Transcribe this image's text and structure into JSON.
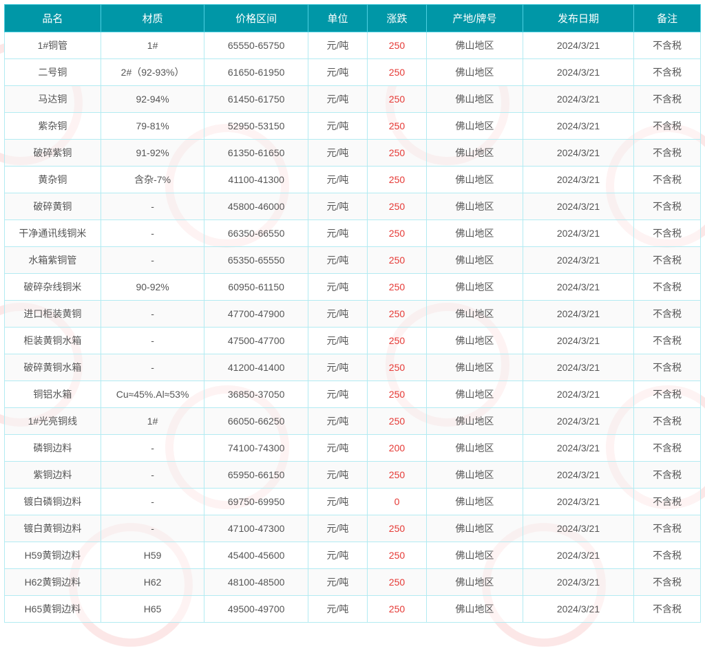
{
  "table": {
    "header_bg": "#0097a7",
    "header_fg": "#ffffff",
    "border_color": "#b2ebf2",
    "change_color": "#e53935",
    "text_color": "#555555",
    "columns": [
      "品名",
      "材质",
      "价格区间",
      "单位",
      "涨跌",
      "产地/牌号",
      "发布日期",
      "备注"
    ],
    "rows": [
      {
        "name": "1#铜管",
        "mat": "1#",
        "price": "65550-65750",
        "unit": "元/吨",
        "change": "250",
        "origin": "佛山地区",
        "date": "2024/3/21",
        "note": "不含税"
      },
      {
        "name": "二号铜",
        "mat": "2#（92-93%）",
        "price": "61650-61950",
        "unit": "元/吨",
        "change": "250",
        "origin": "佛山地区",
        "date": "2024/3/21",
        "note": "不含税"
      },
      {
        "name": "马达铜",
        "mat": "92-94%",
        "price": "61450-61750",
        "unit": "元/吨",
        "change": "250",
        "origin": "佛山地区",
        "date": "2024/3/21",
        "note": "不含税"
      },
      {
        "name": "紫杂铜",
        "mat": "79-81%",
        "price": "52950-53150",
        "unit": "元/吨",
        "change": "250",
        "origin": "佛山地区",
        "date": "2024/3/21",
        "note": "不含税"
      },
      {
        "name": "破碎紫铜",
        "mat": "91-92%",
        "price": "61350-61650",
        "unit": "元/吨",
        "change": "250",
        "origin": "佛山地区",
        "date": "2024/3/21",
        "note": "不含税"
      },
      {
        "name": "黄杂铜",
        "mat": "含杂-7%",
        "price": "41100-41300",
        "unit": "元/吨",
        "change": "250",
        "origin": "佛山地区",
        "date": "2024/3/21",
        "note": "不含税"
      },
      {
        "name": "破碎黄铜",
        "mat": "-",
        "price": "45800-46000",
        "unit": "元/吨",
        "change": "250",
        "origin": "佛山地区",
        "date": "2024/3/21",
        "note": "不含税"
      },
      {
        "name": "干净通讯线铜米",
        "mat": "-",
        "price": "66350-66550",
        "unit": "元/吨",
        "change": "250",
        "origin": "佛山地区",
        "date": "2024/3/21",
        "note": "不含税"
      },
      {
        "name": "水箱紫铜管",
        "mat": "-",
        "price": "65350-65550",
        "unit": "元/吨",
        "change": "250",
        "origin": "佛山地区",
        "date": "2024/3/21",
        "note": "不含税"
      },
      {
        "name": "破碎杂线铜米",
        "mat": "90-92%",
        "price": "60950-61150",
        "unit": "元/吨",
        "change": "250",
        "origin": "佛山地区",
        "date": "2024/3/21",
        "note": "不含税"
      },
      {
        "name": "进口柜装黄铜",
        "mat": "-",
        "price": "47700-47900",
        "unit": "元/吨",
        "change": "250",
        "origin": "佛山地区",
        "date": "2024/3/21",
        "note": "不含税"
      },
      {
        "name": "柜装黄铜水箱",
        "mat": "-",
        "price": "47500-47700",
        "unit": "元/吨",
        "change": "250",
        "origin": "佛山地区",
        "date": "2024/3/21",
        "note": "不含税"
      },
      {
        "name": "破碎黄铜水箱",
        "mat": "-",
        "price": "41200-41400",
        "unit": "元/吨",
        "change": "250",
        "origin": "佛山地区",
        "date": "2024/3/21",
        "note": "不含税"
      },
      {
        "name": "铜铝水箱",
        "mat": "Cu≈45%.Al≈53%",
        "price": "36850-37050",
        "unit": "元/吨",
        "change": "250",
        "origin": "佛山地区",
        "date": "2024/3/21",
        "note": "不含税"
      },
      {
        "name": "1#光亮铜线",
        "mat": "1#",
        "price": "66050-66250",
        "unit": "元/吨",
        "change": "250",
        "origin": "佛山地区",
        "date": "2024/3/21",
        "note": "不含税"
      },
      {
        "name": "磷铜边料",
        "mat": "-",
        "price": "74100-74300",
        "unit": "元/吨",
        "change": "200",
        "origin": "佛山地区",
        "date": "2024/3/21",
        "note": "不含税"
      },
      {
        "name": "紫铜边料",
        "mat": "-",
        "price": "65950-66150",
        "unit": "元/吨",
        "change": "250",
        "origin": "佛山地区",
        "date": "2024/3/21",
        "note": "不含税"
      },
      {
        "name": "镀白磷铜边料",
        "mat": "-",
        "price": "69750-69950",
        "unit": "元/吨",
        "change": "0",
        "origin": "佛山地区",
        "date": "2024/3/21",
        "note": "不含税"
      },
      {
        "name": "镀白黄铜边料",
        "mat": "-",
        "price": "47100-47300",
        "unit": "元/吨",
        "change": "250",
        "origin": "佛山地区",
        "date": "2024/3/21",
        "note": "不含税"
      },
      {
        "name": "H59黄铜边料",
        "mat": "H59",
        "price": "45400-45600",
        "unit": "元/吨",
        "change": "250",
        "origin": "佛山地区",
        "date": "2024/3/21",
        "note": "不含税"
      },
      {
        "name": "H62黄铜边料",
        "mat": "H62",
        "price": "48100-48500",
        "unit": "元/吨",
        "change": "250",
        "origin": "佛山地区",
        "date": "2024/3/21",
        "note": "不含税"
      },
      {
        "name": "H65黄铜边料",
        "mat": "H65",
        "price": "49500-49700",
        "unit": "元/吨",
        "change": "250",
        "origin": "佛山地区",
        "date": "2024/3/21",
        "note": "不含税"
      }
    ]
  }
}
